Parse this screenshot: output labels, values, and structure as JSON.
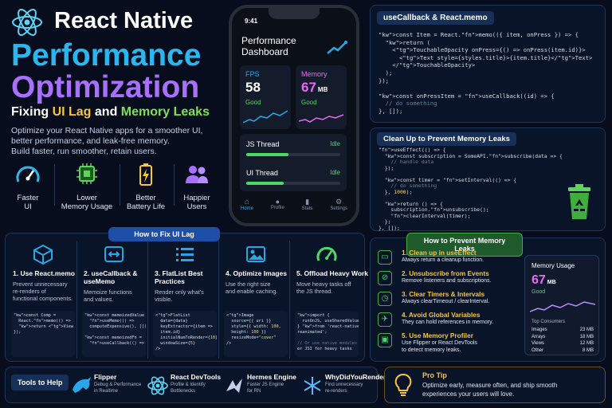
{
  "hero": {
    "title_line1": "React Native",
    "title_line2": "Performance",
    "title_line3": "Optimization",
    "subtitle_prefix": "Fixing ",
    "subtitle_ui": "UI Lag",
    "subtitle_and": " and ",
    "subtitle_mem": "Memory Leaks",
    "desc_line1": "Optimize your React Native apps for a smoother UI,",
    "desc_line2": "better performance, and leak-free memory.",
    "desc_line3": "Build faster, run smoother, retain users.",
    "benefits": [
      {
        "l1": "Faster",
        "l2": "UI"
      },
      {
        "l1": "Lower",
        "l2": "Memory Usage"
      },
      {
        "l1": "Better",
        "l2": "Battery Life"
      },
      {
        "l1": "Happier",
        "l2": "Users"
      }
    ]
  },
  "phone": {
    "time": "9:41",
    "title1": "Performance",
    "title2": "Dashboard",
    "fps_label": "FPS",
    "fps_value": "58",
    "fps_status": "Good",
    "mem_label": "Memory",
    "mem_value": "67",
    "mem_unit": "MB",
    "mem_status": "Good",
    "js_label": "JS Thread",
    "js_status": "Idle",
    "js_fill": 0.45,
    "ui_label": "UI Thread",
    "ui_status": "Idle",
    "ui_fill": 0.4,
    "nav": [
      "Home",
      "Profile",
      "Stats",
      "Settings"
    ]
  },
  "callback": {
    "title": "useCallback & React.memo",
    "code": [
      "const Item = React.memo(({ item, onPress }) => {",
      "  return (",
      "    <TouchableOpacity onPress={() => onPress(item.id)}>",
      "      <Text style={styles.title}>{item.title}</Text>",
      "    </TouchableOpacity>",
      "  );",
      "});",
      "",
      "const onPressItem = useCallback((id) => {",
      "  // do something",
      "}, []);"
    ]
  },
  "cleanup": {
    "title": "Clean Up to Prevent Memory Leaks",
    "code": [
      "useEffect(() => {",
      "  const subscription = SomeAPI.subscribe(data => {",
      "    // handle data",
      "  });",
      "",
      "  const timer = setInterval(() => {",
      "    // do something",
      "  }, 1000);",
      "",
      "  return () => {",
      "    subscription.unsubscribe();",
      "    clearInterval(timer);",
      "  };",
      "}, []);"
    ]
  },
  "ui_lag": {
    "header": "How to Fix UI Lag",
    "cards": [
      {
        "title": "1. Use React.memo",
        "desc": [
          "Prevent unnecessary",
          "re-renders of",
          "functional components."
        ],
        "code": [
          "const Comp =",
          "  React.memo(() =>",
          "  return <View />;",
          "});"
        ]
      },
      {
        "title": "2. useCallback &",
        "title2": "useMemo",
        "desc": [
          "Memoize functions",
          "and values."
        ],
        "code": [
          "const memoizedValue =",
          "  useMemo(() =>",
          "  computeExpensive(), []);",
          "",
          "const memoizedFn =",
          "  useCallback(() => {}, []);"
        ]
      },
      {
        "title": "3. FlatList Best",
        "title2": "Practices",
        "desc": [
          "Render only what's",
          "visible."
        ],
        "code": [
          "<FlatList",
          "  data={data}",
          "  keyExtractor={item =>",
          "  item.id}",
          "  initialNumToRender={10}",
          "  windowSize={5}",
          "/>"
        ]
      },
      {
        "title": "4. Optimize Images",
        "desc": [
          "Use the right size",
          "and enable caching."
        ],
        "code": [
          "<Image",
          "  source={{ uri }}",
          "  style={{ width: 100,",
          "  height: 100 }}",
          "  resizeMode=\"cover\"",
          "/>"
        ]
      },
      {
        "title": "5. Offload Heavy Work",
        "desc": [
          "Move heavy tasks off",
          "the JS thread."
        ],
        "code": [
          "import {",
          "  runOnJS, useSharedValue",
          "} from 'react-native-",
          "reanimated';",
          "",
          "// Or use native modules",
          "or JSI for heavy tasks"
        ]
      }
    ]
  },
  "leaks": {
    "header": "How to Prevent Memory Leaks",
    "items": [
      {
        "title": "1. Clean up in useEffect",
        "desc": "Always return a cleanup function."
      },
      {
        "title": "2. Unsubscribe from Events",
        "desc": "Remove listeners and subscriptions."
      },
      {
        "title": "3. Clear Timers & Intervals",
        "desc": "Always clearTimeout / clearInterval."
      },
      {
        "title": "4. Avoid Global Variables",
        "desc": "They can hold references in memory."
      },
      {
        "title": "5. Use Memory Profiler",
        "desc": "Use Flipper or React DevTools",
        "desc2": "to detect memory leaks."
      }
    ],
    "card": {
      "title": "Memory Usage",
      "value": "67",
      "unit": "MB",
      "status": "Good",
      "table_title": "Top Consumers",
      "rows": [
        {
          "name": "Images",
          "val": "23 MB"
        },
        {
          "name": "Arrays",
          "val": "18 MB"
        },
        {
          "name": "Views",
          "val": "12 MB"
        },
        {
          "name": "Other",
          "val": "8 MB"
        }
      ]
    }
  },
  "tools": {
    "label": "Tools to Help",
    "items": [
      {
        "name": "Flipper",
        "d1": "Debug & Performance",
        "d2": "in Realtime"
      },
      {
        "name": "React DevTools",
        "d1": "Profile & Identify",
        "d2": "Bottlenecks"
      },
      {
        "name": "Hermes Engine",
        "d1": "Faster JS Engine",
        "d2": "for RN"
      },
      {
        "name": "WhyDidYouRender",
        "d1": "Find unnecessary",
        "d2": "re-renders"
      }
    ]
  },
  "tip": {
    "title": "Pro Tip",
    "line1": "Optimize early, measure often, and ship smooth",
    "line2": "experiences your users will love."
  },
  "colors": {
    "accent": "#27a7e8",
    "purple": "#a970ff",
    "green": "#4cd964",
    "gold": "#f5c542",
    "memory": "#e96bf5"
  }
}
